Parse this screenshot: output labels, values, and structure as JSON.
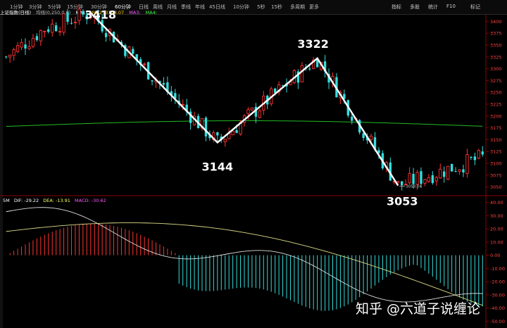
{
  "toolbar": {
    "tabs": [
      "1分钟",
      "3分钟",
      "5分钟",
      "15分钟",
      "30分钟",
      "60分钟",
      "日线",
      "周线",
      "月线",
      "季线",
      "年线",
      "45日线",
      "10分钟",
      "5秒",
      "15秒",
      "多周期",
      "更多"
    ],
    "active_tab": "60分钟",
    "right_buttons": [
      "指标",
      "多股",
      "统计",
      "F10",
      "标记"
    ]
  },
  "legend": {
    "stock": "上证指数(日线)",
    "indicator": "均线(0,250,0,0)",
    "ma1": "MA1:",
    "ma2": "MA2: 3190.07",
    "ma3": "MA3:",
    "ma4": "MA4:"
  },
  "macd_legend": {
    "name": "5M",
    "dif": "DIF: -29.22",
    "dea": "DEA: -13.91",
    "macd": "MACD: -30.62"
  },
  "annotations": {
    "p1": "3418",
    "p2": "3144",
    "p3": "3322",
    "p4": "3053",
    "low_label": "3053.04"
  },
  "watermark": "知乎 @六道子说缠论",
  "colors": {
    "up": "#ff3333",
    "down": "#33dddd",
    "ma": "#22bb22",
    "zigzag": "#ffffff",
    "dif": "#dddddd",
    "dea": "#dddd88",
    "axis_text": "#ff4444"
  },
  "chart_data": {
    "type": "candlestick",
    "price_axis": {
      "ylim": [
        3037.5,
        3412.5
      ],
      "ticks": [
        3050,
        3075,
        3100,
        3125,
        3150,
        3175,
        3200,
        3225,
        3250,
        3275,
        3300,
        3325,
        3350,
        3375,
        3400
      ]
    },
    "macd_axis": {
      "ylim": [
        -53,
        43
      ],
      "ticks": [
        40.0,
        30.0,
        20.0,
        10.0,
        0.0,
        -10.0,
        -20.0,
        -30.0,
        -40.0,
        -50.0
      ]
    },
    "zigzag": [
      {
        "index": 22,
        "value": 3418
      },
      {
        "index": 55,
        "value": 3144
      },
      {
        "index": 81,
        "value": 3322
      },
      {
        "index": 102,
        "value": 3053
      }
    ],
    "ma_series_name": "MA2",
    "count": 125
  }
}
